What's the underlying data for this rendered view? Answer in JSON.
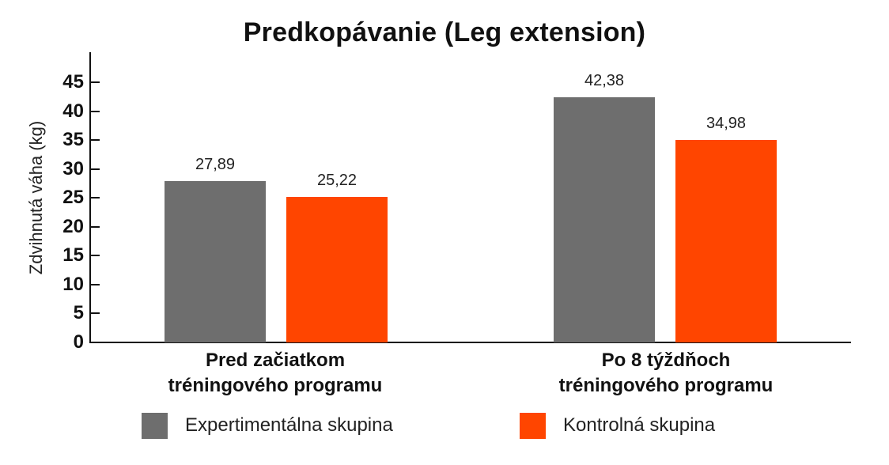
{
  "chart_data": {
    "type": "bar",
    "title": "Predkopávanie (Leg extension)",
    "xlabel": "",
    "ylabel": "Zdvihnutá váha (kg)",
    "ylim": [
      0,
      45
    ],
    "yticks": [
      "0",
      "5",
      "10",
      "15",
      "20",
      "25",
      "30",
      "35",
      "40",
      "45"
    ],
    "grid": false,
    "legend_position": "bottom",
    "categories": [
      "Pred začiatkom tréningového programu",
      "Po 8 týždňoch tréningového programu"
    ],
    "category_lines": [
      [
        "Pred začiatkom",
        "tréningového programu"
      ],
      [
        "Po 8 týždňoch",
        "tréningového programu"
      ]
    ],
    "series": [
      {
        "name": "Expertimentálna skupina",
        "color": "#6e6e6e",
        "values": [
          27.89,
          42.38
        ],
        "labels": [
          "27,89",
          "42,38"
        ]
      },
      {
        "name": "Kontrolná skupina",
        "color": "#ff4500",
        "values": [
          25.22,
          34.98
        ],
        "labels": [
          "25,22",
          "34,98"
        ]
      }
    ]
  }
}
